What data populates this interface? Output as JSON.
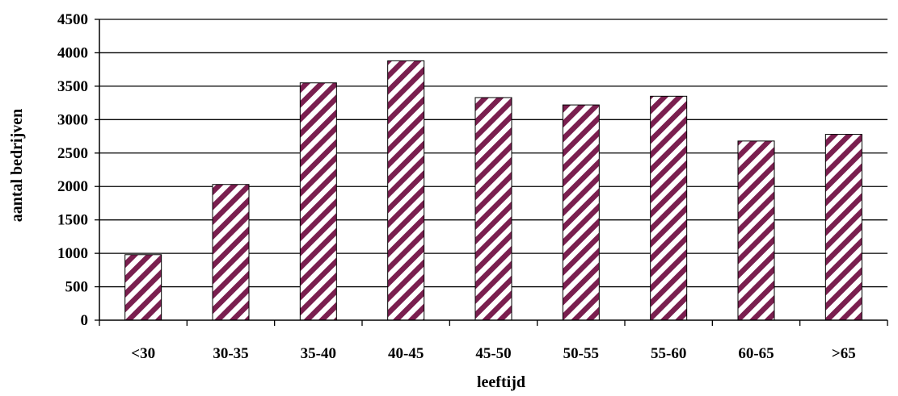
{
  "chart_data": {
    "type": "bar",
    "categories": [
      "<30",
      "30-35",
      "35-40",
      "40-45",
      "45-50",
      "50-55",
      "55-60",
      "60-65",
      ">65"
    ],
    "values": [
      980,
      2030,
      3550,
      3880,
      3330,
      3220,
      3350,
      2680,
      2780
    ],
    "xlabel": "leeftijd",
    "ylabel": "aantal bedrijven",
    "ylim": [
      0,
      4500
    ],
    "yticks": [
      "0",
      "500",
      "1000",
      "1500",
      "2000",
      "2500",
      "3000",
      "3500",
      "4000",
      "4500"
    ],
    "grid": true,
    "legend": "none",
    "colors": {
      "bar_stripe": "#7a1f4f",
      "bar_background": "#ffffff",
      "grid": "#000000"
    }
  }
}
